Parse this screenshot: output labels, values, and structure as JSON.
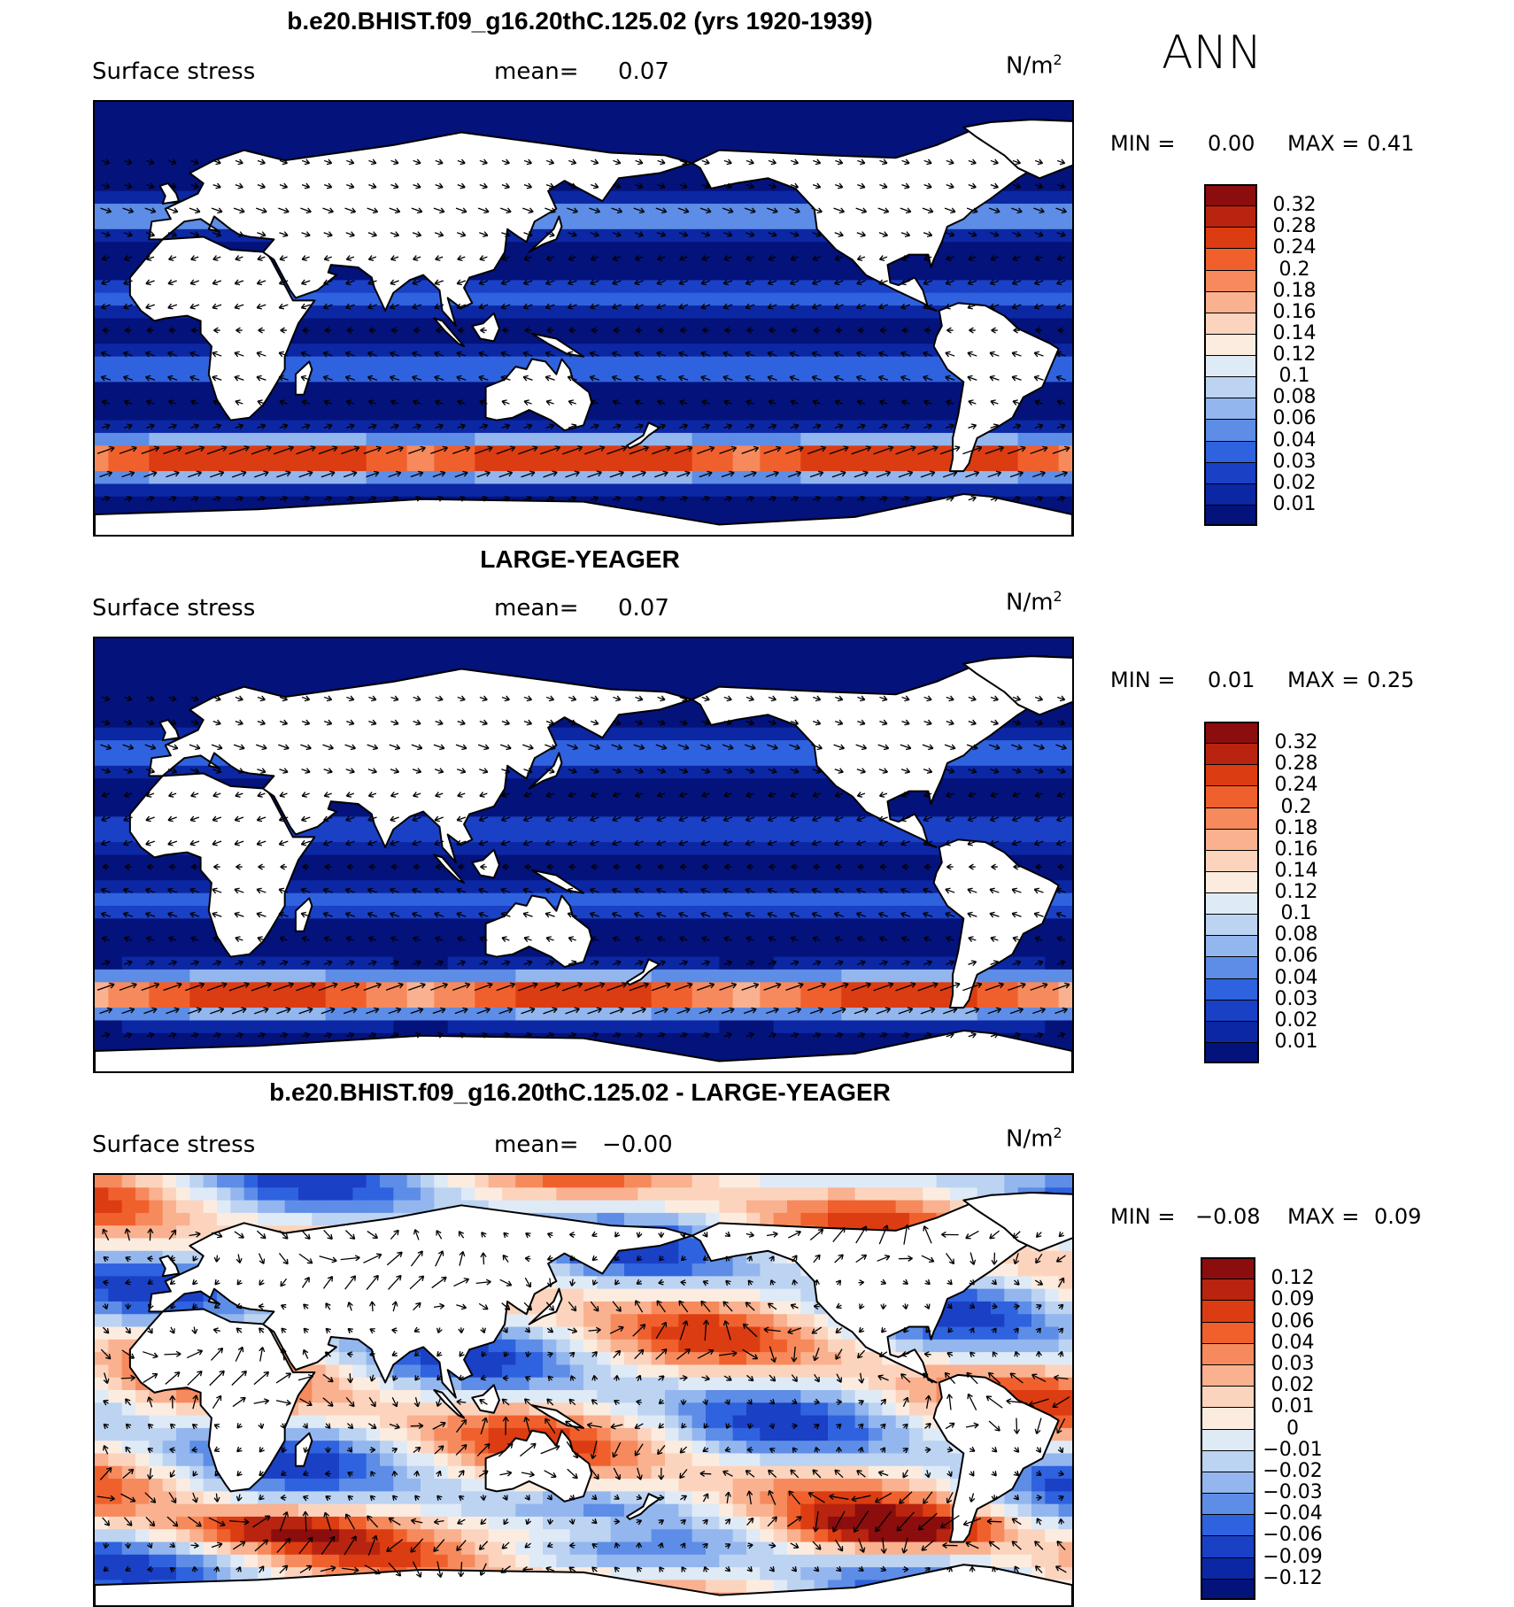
{
  "season": "ANN",
  "panels": [
    {
      "title": "b.e20.BHIST.f09_g16.20thC.125.02 (yrs 1920-1939)",
      "variable": "Surface stress",
      "mean_label": "mean=",
      "mean_value": "0.07",
      "units": "N/m",
      "units_sup": "2",
      "min_label": "MIN =",
      "min_value": "0.00",
      "max_label": "MAX =",
      "max_value": "0.41",
      "colorbar_labels": [
        "0.32",
        "0.28",
        "0.24",
        "0.2",
        "0.18",
        "0.16",
        "0.14",
        "0.12",
        "0.1",
        "0.08",
        "0.06",
        "0.04",
        "0.03",
        "0.02",
        "0.01"
      ],
      "colorbar_colors": [
        "#8c0d0d",
        "#b8240f",
        "#dc3c12",
        "#f0602d",
        "#f68a5c",
        "#f9b18f",
        "#fcd4bd",
        "#fcece0",
        "#dfeaf7",
        "#bcd3f2",
        "#93b6ee",
        "#5d8de6",
        "#2f62de",
        "#1a40c5",
        "#0c27a3",
        "#04127b"
      ],
      "field": "ref"
    },
    {
      "title": "LARGE-YEAGER",
      "variable": "Surface stress",
      "mean_label": "mean=",
      "mean_value": "0.07",
      "units": "N/m",
      "units_sup": "2",
      "min_label": "MIN =",
      "min_value": "0.01",
      "max_label": "MAX =",
      "max_value": "0.25",
      "colorbar_labels": [
        "0.32",
        "0.28",
        "0.24",
        "0.2",
        "0.18",
        "0.16",
        "0.14",
        "0.12",
        "0.1",
        "0.08",
        "0.06",
        "0.04",
        "0.03",
        "0.02",
        "0.01"
      ],
      "colorbar_colors": [
        "#8c0d0d",
        "#b8240f",
        "#dc3c12",
        "#f0602d",
        "#f68a5c",
        "#f9b18f",
        "#fcd4bd",
        "#fcece0",
        "#dfeaf7",
        "#bcd3f2",
        "#93b6ee",
        "#5d8de6",
        "#2f62de",
        "#1a40c5",
        "#0c27a3",
        "#04127b"
      ],
      "field": "obs"
    },
    {
      "title": "b.e20.BHIST.f09_g16.20thC.125.02 - LARGE-YEAGER",
      "variable": "Surface stress",
      "mean_label": "mean=",
      "mean_value": "−0.00",
      "units": "N/m",
      "units_sup": "2",
      "min_label": "MIN =",
      "min_value": "−0.08",
      "max_label": "MAX =",
      "max_value": "0.09",
      "colorbar_labels": [
        "0.12",
        "0.09",
        "0.06",
        "0.04",
        "0.03",
        "0.02",
        "0.01",
        "0",
        "−0.01",
        "−0.02",
        "−0.03",
        "−0.04",
        "−0.06",
        "−0.09",
        "−0.12"
      ],
      "colorbar_colors": [
        "#8c0d0d",
        "#b8240f",
        "#dc3c12",
        "#f0602d",
        "#f68a5c",
        "#f9b18f",
        "#fcd4bd",
        "#fcece0",
        "#dfeaf7",
        "#bcd3f2",
        "#93b6ee",
        "#5d8de6",
        "#2f62de",
        "#1a40c5",
        "#0c27a3",
        "#04127b"
      ],
      "field": "diff"
    }
  ]
}
